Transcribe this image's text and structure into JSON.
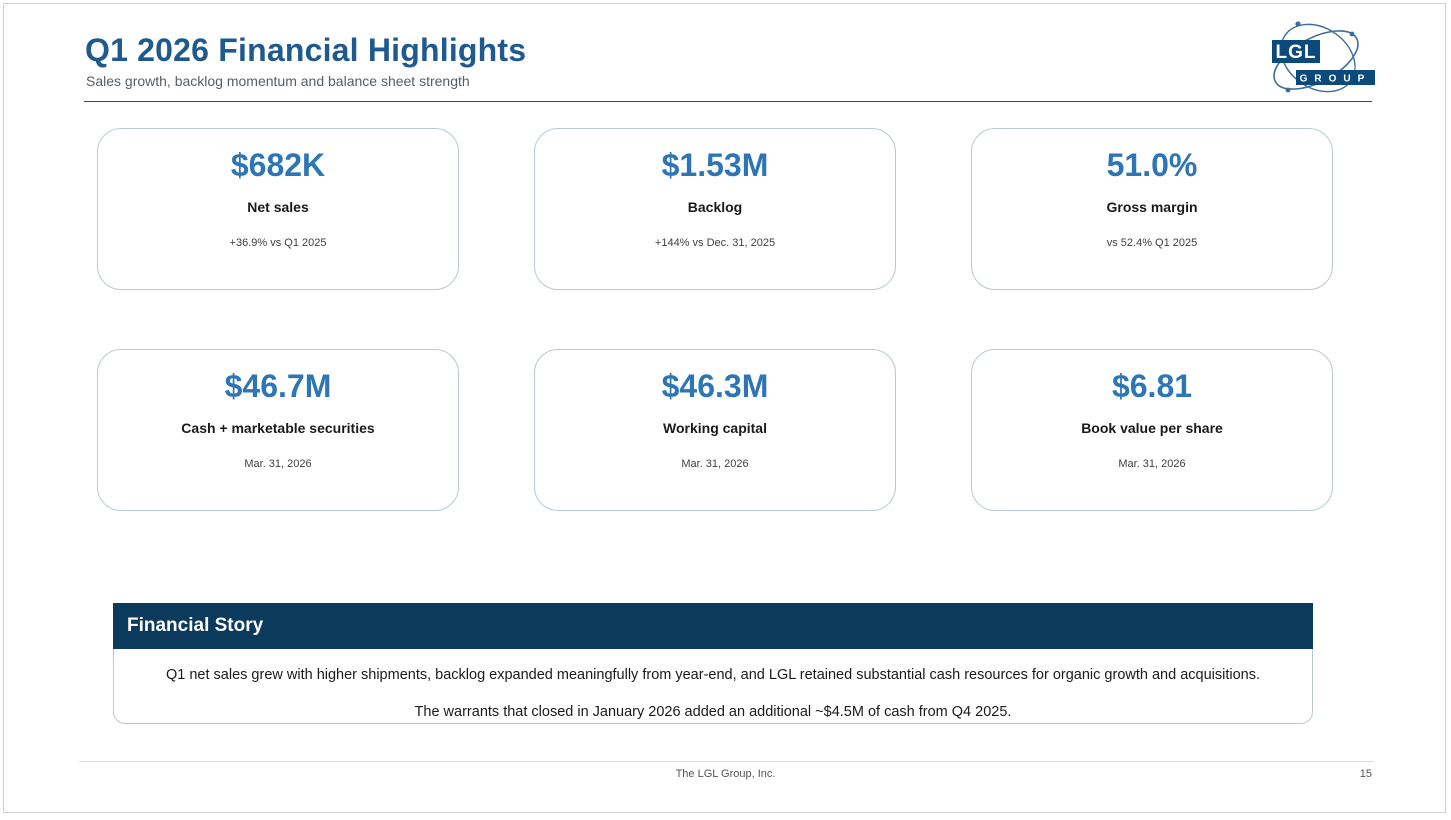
{
  "header": {
    "title": "Q1 2026 Financial Highlights",
    "subtitle": "Sales growth, backlog momentum and balance sheet strength"
  },
  "logo": {
    "top_text": "LGL",
    "bottom_text": "GROUP",
    "colors": {
      "primary": "#0b4a7a",
      "orbit": "#3c6e99"
    }
  },
  "metrics": [
    {
      "value": "$682K",
      "label": "Net sales",
      "note": "+36.9% vs Q1 2025"
    },
    {
      "value": "$1.53M",
      "label": "Backlog",
      "note": "+144% vs Dec. 31, 2025"
    },
    {
      "value": "51.0%",
      "label": "Gross margin",
      "note": "vs 52.4% Q1 2025"
    },
    {
      "value": "$46.7M",
      "label": "Cash + marketable securities",
      "note": "Mar. 31, 2026"
    },
    {
      "value": "$46.3M",
      "label": "Working capital",
      "note": "Mar. 31, 2026"
    },
    {
      "value": "$6.81",
      "label": "Book value per share",
      "note": "Mar. 31, 2026"
    }
  ],
  "story": {
    "title": "Financial Story",
    "paragraphs": [
      "Q1 net sales grew with higher shipments, backlog expanded meaningfully from year-end, and LGL retained substantial cash resources for organic growth and acquisitions.",
      "The warrants that closed in January 2026 added an additional ~$4.5M of cash from Q4 2025."
    ]
  },
  "footer": {
    "company": "The LGL Group, Inc.",
    "page_number": "15"
  },
  "colors": {
    "title": "#1f5a8f",
    "metric_value": "#2e75b6",
    "story_header_bg": "#0b3a5c",
    "card_border": "#b9c9d3"
  }
}
